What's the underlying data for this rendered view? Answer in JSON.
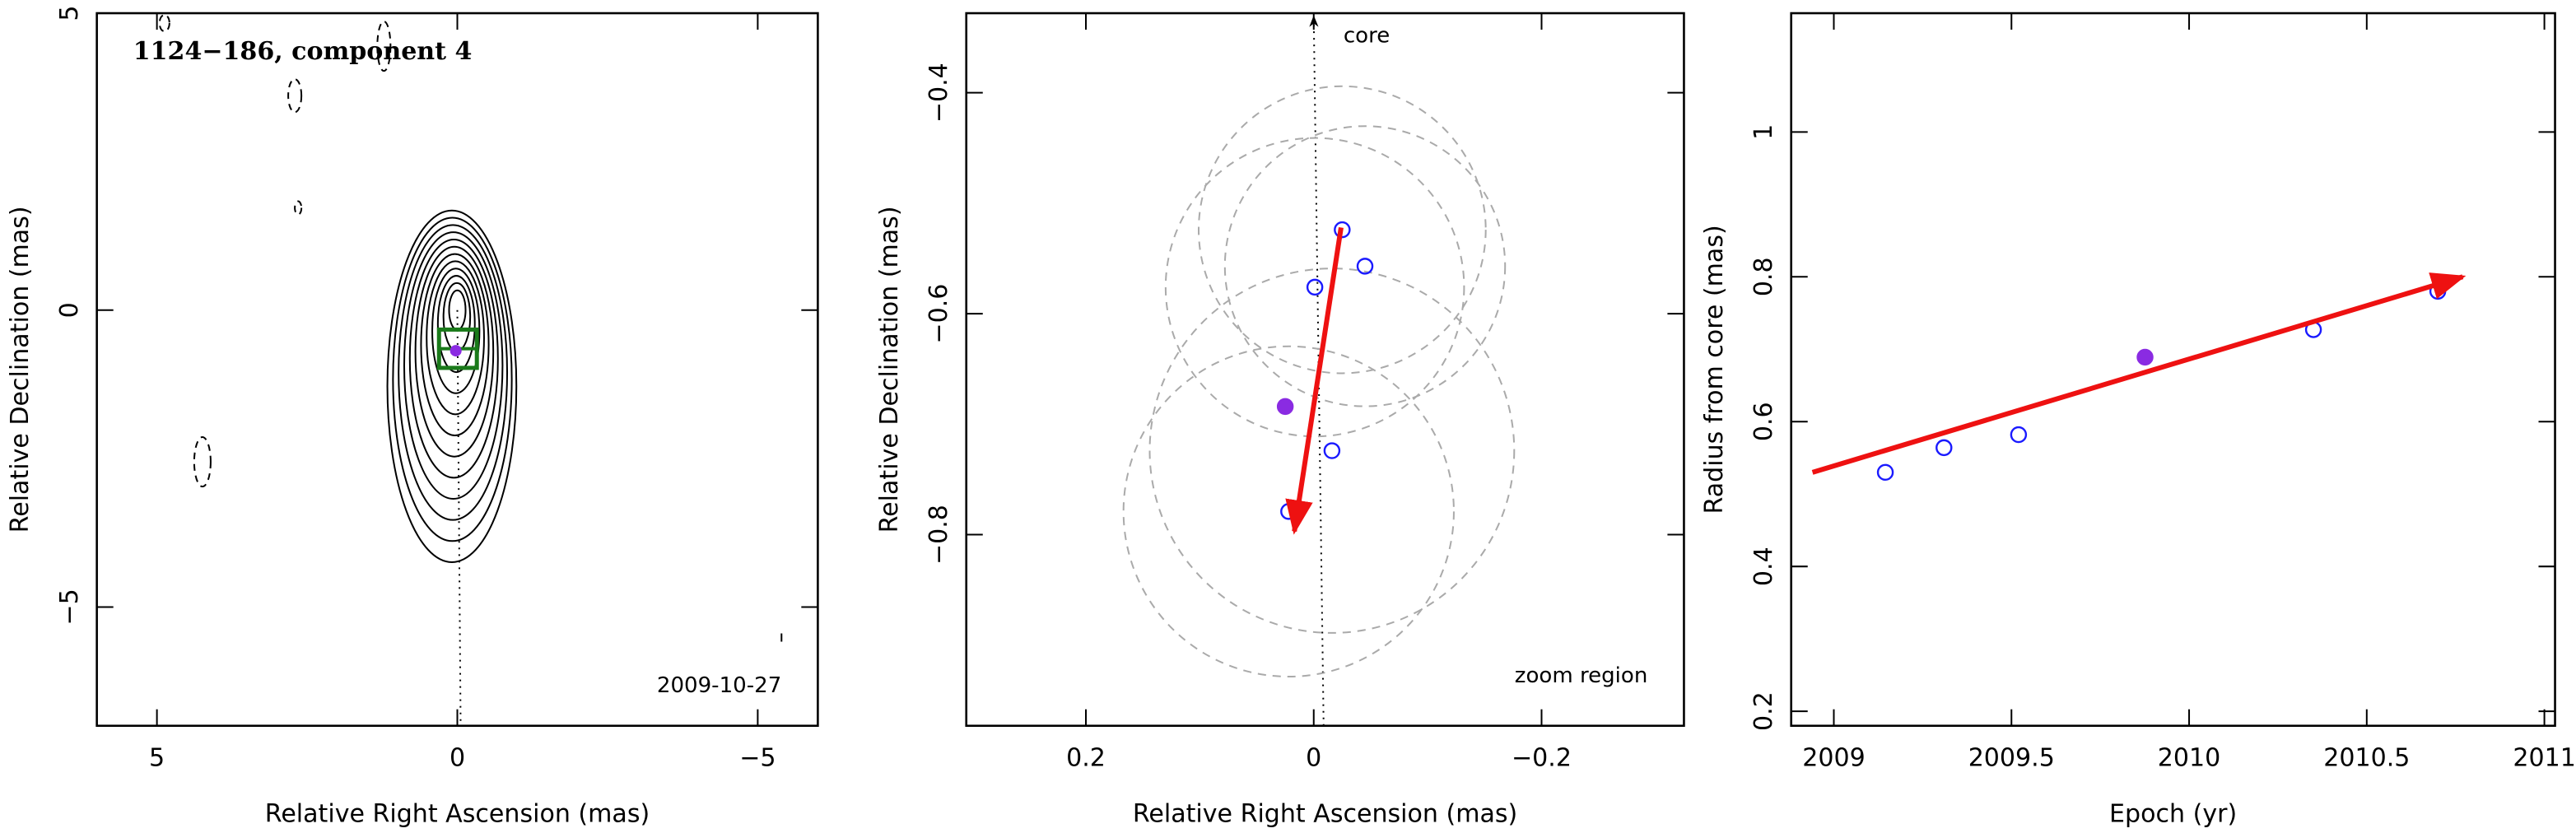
{
  "chart_data": [
    {
      "type": "contour",
      "title": "1124−186, component 4",
      "annotation": "2009-10-27",
      "xlabel": "Relative Right Ascension (mas)",
      "ylabel": "Relative Declination (mas)",
      "xlim": [
        6,
        -6
      ],
      "ylim": [
        -7,
        5
      ],
      "xticks": [
        5,
        0,
        {
          "value": -5,
          "label": "−5"
        }
      ],
      "yticks": [
        {
          "value": -5,
          "label": "−5"
        },
        0,
        5
      ]
    },
    {
      "type": "scatter",
      "annotations": [
        "core",
        "zoom region"
      ],
      "xlabel": "Relative Right Ascension (mas)",
      "ylabel": "Relative Declination (mas)",
      "xlim": [
        0.305,
        -0.325
      ],
      "ylim": [
        -0.973,
        -0.328
      ],
      "xticks": [
        0.2,
        0,
        {
          "value": -0.2,
          "label": "−0.2"
        }
      ],
      "yticks": [
        {
          "value": -0.8,
          "label": "−0.8"
        },
        {
          "value": -0.6,
          "label": "−0.6"
        },
        {
          "value": -0.4,
          "label": "−0.4"
        }
      ],
      "series": [
        {
          "color": "#1a1aff",
          "marker": "open",
          "x": [
            -0.025,
            -0.045,
            -0.001,
            -0.016,
            0.022
          ],
          "y": [
            -0.524,
            -0.557,
            -0.576,
            -0.724,
            -0.779
          ],
          "errors": [
            0.126,
            0.123,
            0.131,
            0.16,
            0.145
          ]
        },
        {
          "color": "#8a2be2",
          "marker": "filled",
          "x": [
            0.025
          ],
          "y": [
            -0.684
          ]
        }
      ],
      "fit": {
        "color": "#ee1111",
        "x": [
          -0.024,
          0.017
        ],
        "y": [
          -0.522,
          -0.797
        ]
      }
    },
    {
      "type": "scatter",
      "xlabel": "Epoch (yr)",
      "ylabel": "Radius from core (mas)",
      "xlim": [
        2008.88,
        2011.03
      ],
      "ylim": [
        0.18,
        1.164
      ],
      "xticks": [
        2009,
        2009.5,
        2010,
        2010.5,
        2011
      ],
      "yticks": [
        0.2,
        0.4,
        0.6,
        0.8,
        1
      ],
      "series": [
        {
          "color": "#1a1aff",
          "marker": "open",
          "x": [
            2009.145,
            2009.31,
            2009.52,
            2010.35,
            2010.7
          ],
          "y": [
            0.53,
            0.564,
            0.582,
            0.727,
            0.78
          ]
        },
        {
          "color": "#8a2be2",
          "marker": "filled",
          "x": [
            2009.876
          ],
          "y": [
            0.689
          ]
        }
      ],
      "fit": {
        "color": "#ee1111",
        "x": [
          2008.94,
          2010.77
        ],
        "y": [
          0.53,
          0.8
        ]
      }
    }
  ]
}
